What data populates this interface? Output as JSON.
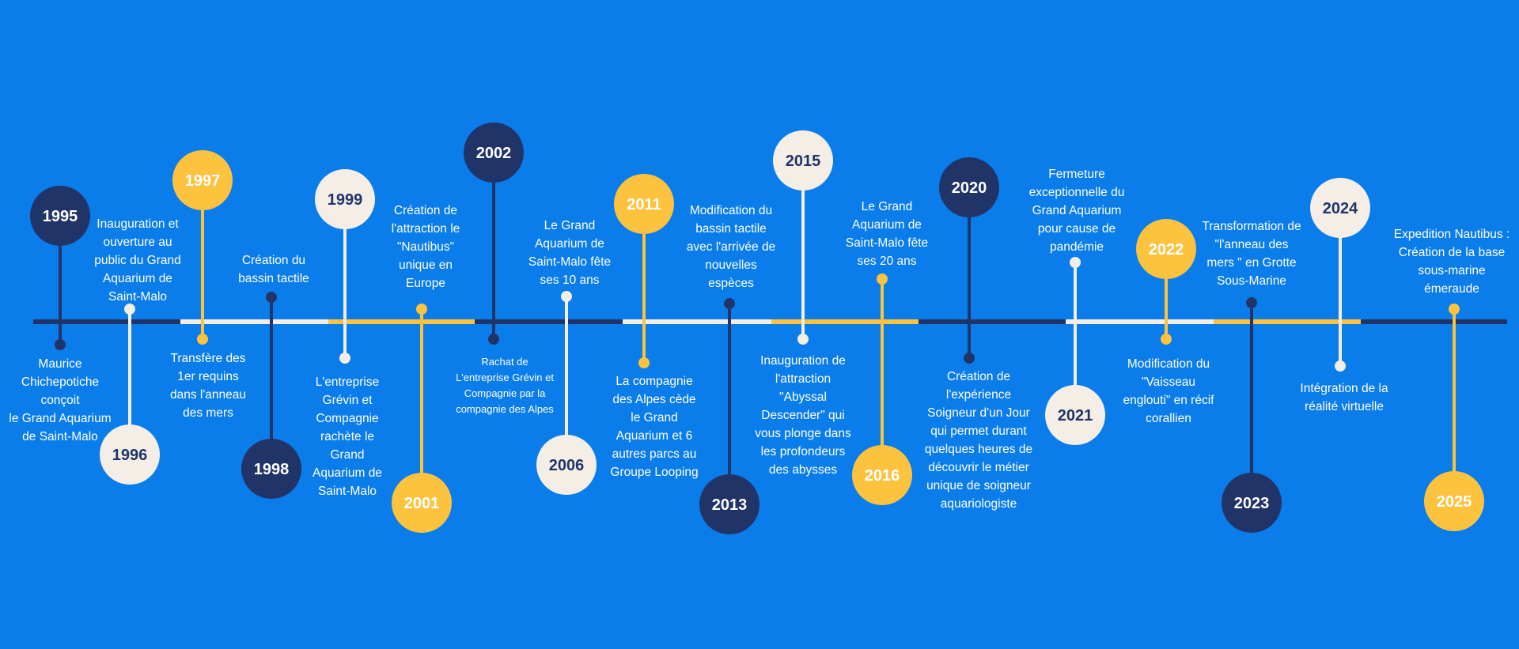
{
  "colors": {
    "background": "#0A7DEB",
    "navy": "#213468",
    "cream": "#F4EEE6",
    "yellow": "#FDC23E"
  },
  "events": [
    {
      "year": "1995",
      "color": "navy",
      "text": "Maurice\nChichepotiche\nconçoit\nle Grand Aquarium\nde Saint-Malo"
    },
    {
      "year": "1996",
      "color": "cream",
      "text": "Inauguration et\nouverture au\npublic du Grand\nAquarium de\nSaint-Malo"
    },
    {
      "year": "1997",
      "color": "yellow",
      "text": "Transfère des\n1er requins\ndans l'anneau\ndes mers"
    },
    {
      "year": "1998",
      "color": "navy",
      "text": "Création du\nbassin tactile"
    },
    {
      "year": "1999",
      "color": "cream",
      "text": "L'entreprise\nGrévin et\nCompagnie\nrachète le\nGrand\nAquarium de\nSaint-Malo"
    },
    {
      "year": "2001",
      "color": "yellow",
      "text": "Création de\nl'attraction le\n\"Nautibus\"\nunique en\nEurope"
    },
    {
      "year": "2002",
      "color": "navy",
      "text": "Rachat de\nL'entreprise Grévin et\nCompagnie par la\ncompagnie des Alpes"
    },
    {
      "year": "2006",
      "color": "cream",
      "text": "Le Grand\nAquarium de\nSaint-Malo fête\nses 10 ans"
    },
    {
      "year": "2011",
      "color": "yellow",
      "text": "La compagnie\ndes Alpes cède\nle Grand\nAquarium et 6\nautres parcs au\nGroupe Looping"
    },
    {
      "year": "2013",
      "color": "navy",
      "text": "Modification du\nbassin tactile\navec l'arrivée de\nnouvelles\nespèces"
    },
    {
      "year": "2015",
      "color": "cream",
      "text": "Inauguration de\nl'attraction\n\"Abyssal\nDescender\" qui\nvous plonge dans\nles profondeurs\ndes abysses"
    },
    {
      "year": "2016",
      "color": "yellow",
      "text": "Le Grand\nAquarium de\nSaint-Malo fête\nses 20 ans"
    },
    {
      "year": "2020",
      "color": "navy",
      "text": "Création de\nl'expérience\nSoigneur d'un Jour\nqui permet durant\nquelques heures de\ndécouvrir le métier\nunique de soigneur\naquariologiste"
    },
    {
      "year": "2021",
      "color": "cream",
      "text": "Fermeture\nexceptionnelle du\nGrand Aquarium\npour cause de\npandémie"
    },
    {
      "year": "2022",
      "color": "yellow",
      "text": "Modification du\n\"Vaisseau\nenglouti\" en récif\ncorallien"
    },
    {
      "year": "2023",
      "color": "navy",
      "text": "Transformation de\n\"l'anneau des\nmers \" en Grotte\nSous-Marine"
    },
    {
      "year": "2024",
      "color": "cream",
      "text": "Intégration de la\nréalité virtuelle"
    },
    {
      "year": "2025",
      "color": "yellow",
      "text": "Expedition Nautibus :\nCréation de la base\nsous-marine\némeraude"
    }
  ]
}
